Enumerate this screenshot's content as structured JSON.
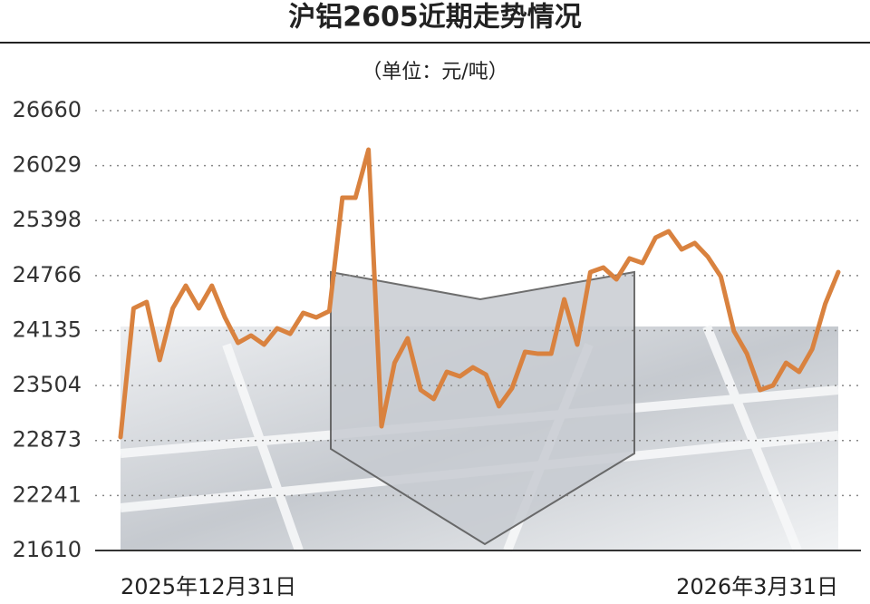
{
  "chart_data": {
    "type": "line",
    "title": "沪铝2605近期走势情况",
    "subtitle": "（单位：元/吨）",
    "categories": [
      "2025年12月31日",
      null,
      null,
      null,
      null,
      null,
      null,
      null,
      null,
      null,
      null,
      null,
      null,
      null,
      null,
      null,
      null,
      null,
      null,
      null,
      null,
      null,
      null,
      null,
      null,
      null,
      null,
      null,
      null,
      null,
      null,
      null,
      null,
      null,
      null,
      null,
      null,
      null,
      null,
      null,
      null,
      null,
      null,
      null,
      null,
      null,
      null,
      null,
      null,
      null,
      null,
      null,
      null,
      null,
      null,
      "2026年3月31日"
    ],
    "values": [
      22912,
      24390,
      24463,
      23797,
      24390,
      24650,
      24390,
      24650,
      24286,
      23994,
      24078,
      23974,
      24161,
      24098,
      24338,
      24286,
      24359,
      25660,
      25660,
      26212,
      23036,
      23765,
      24046,
      23453,
      23349,
      23661,
      23609,
      23713,
      23630,
      23266,
      23474,
      23890,
      23869,
      23869,
      24494,
      23974,
      24806,
      24859,
      24723,
      24963,
      24911,
      25202,
      25275,
      25067,
      25140,
      24983,
      24754,
      24130,
      23869,
      23453,
      23505,
      23765,
      23661,
      23921,
      24442,
      24806
    ],
    "color": "#d9823f",
    "ylim": [
      21610,
      26660
    ],
    "yticks": [
      21610,
      22241,
      22873,
      23504,
      24135,
      24766,
      25398,
      26029,
      26660
    ],
    "grid": true
  }
}
